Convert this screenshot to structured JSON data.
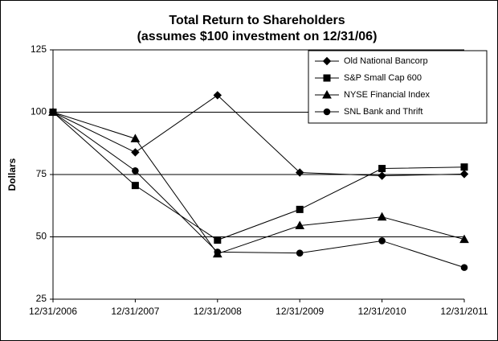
{
  "chart_data": {
    "type": "line",
    "title": "Total Return to Shareholders",
    "subtitle": "(assumes $100 investment on 12/31/06)",
    "y_label": "Dollars",
    "categories": [
      "12/31/2006",
      "12/31/2007",
      "12/31/2008",
      "12/31/2009",
      "12/31/2010",
      "12/31/2011"
    ],
    "series": [
      {
        "name": "Old National Bancorp",
        "color": "#000000",
        "marker": "diamond",
        "values": [
          100,
          83.9,
          106.8,
          75.8,
          74.5,
          75.2
        ]
      },
      {
        "name": "S&P Small Cap 600",
        "color": "#000000",
        "marker": "square",
        "values": [
          100,
          70.6,
          48.7,
          61,
          77.4,
          78
        ]
      },
      {
        "name": "NYSE Financial Index",
        "color": "#000000",
        "marker": "triangle",
        "values": [
          100,
          89.4,
          43.2,
          54.5,
          58,
          49
        ]
      },
      {
        "name": "SNL Bank and Thrift",
        "color": "#000000",
        "marker": "circle",
        "values": [
          100,
          76.5,
          43.9,
          43.5,
          48.4,
          37.7
        ]
      }
    ],
    "ylim": [
      25,
      125
    ],
    "yticks": [
      25,
      50,
      75,
      100,
      125
    ],
    "grid": true,
    "legend": "top-right"
  }
}
